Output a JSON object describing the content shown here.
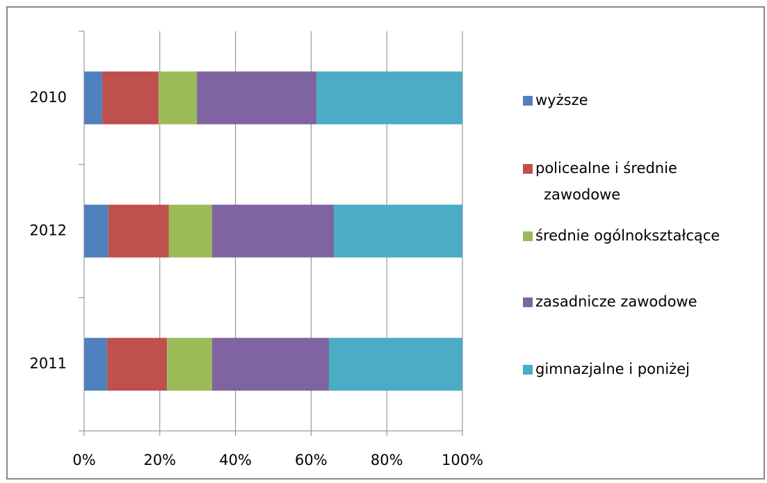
{
  "chart_data": {
    "type": "stacked-barh",
    "categories": [
      "2010",
      "2012",
      "2011"
    ],
    "series": [
      {
        "name": "wyższe",
        "color": "#4f81bd",
        "values": [
          4.8,
          6.4,
          6.1
        ]
      },
      {
        "name": "policealne i średnie zawodowe",
        "color": "#c0504d",
        "values": [
          14.9,
          16.0,
          15.8
        ]
      },
      {
        "name": "średnie ogólnokształcące",
        "color": "#9bbb59",
        "values": [
          10.1,
          11.4,
          11.9
        ]
      },
      {
        "name": "zasadnicze zawodowe",
        "color": "#8064a2",
        "values": [
          31.6,
          32.2,
          30.9
        ]
      },
      {
        "name": "gimnazjalne i poniżej",
        "color": "#4bacc6",
        "values": [
          38.6,
          34.0,
          35.3
        ]
      }
    ],
    "xlim": [
      0,
      100
    ],
    "xticks": [
      {
        "value": 0,
        "label": "0%"
      },
      {
        "value": 20,
        "label": "20%"
      },
      {
        "value": 40,
        "label": "40%"
      },
      {
        "value": 60,
        "label": "60%"
      },
      {
        "value": 80,
        "label": "80%"
      },
      {
        "value": 100,
        "label": "100%"
      }
    ],
    "grid": true,
    "legend": "right"
  }
}
